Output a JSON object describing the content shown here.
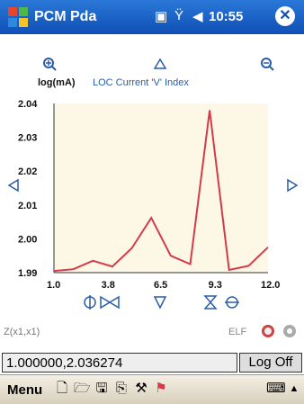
{
  "titlebar": {
    "app_title": "PCM Pda",
    "time": "10:55",
    "close_label": "✕"
  },
  "chart_data": {
    "type": "line",
    "title": "LOC Current 'V' Index",
    "ylabel": "log(mA)",
    "xlim": [
      1.0,
      12.0
    ],
    "ylim": [
      1.99,
      2.04
    ],
    "xticks": [
      "1.0",
      "3.8",
      "6.5",
      "9.3",
      "12.0"
    ],
    "yticks": [
      "2.04",
      "2.03",
      "2.02",
      "2.01",
      "2.00",
      "1.99"
    ],
    "series": [
      {
        "color": "#d43b4a",
        "x": [
          1.0,
          2.0,
          3.0,
          4.0,
          5.0,
          6.0,
          7.0,
          8.0,
          9.0,
          10.0,
          11.0,
          12.0
        ],
        "y": [
          1.9905,
          1.991,
          1.9935,
          1.9918,
          1.9972,
          2.0062,
          1.995,
          1.9925,
          2.038,
          1.9908,
          1.992,
          1.9975
        ]
      }
    ],
    "grid": false,
    "plot_background": "#fdf8e6"
  },
  "status": {
    "formula": "Z(x1,x1)",
    "elf_label": "ELF",
    "coordinates": "1.000000,2.036274",
    "logoff_label": "Log Off"
  },
  "menubar": {
    "menu_label": "Menu"
  },
  "colors": {
    "accent_blue": "#2a5caa",
    "title_bar": "#1c64c8",
    "line": "#d43b4a",
    "plot_bg": "#fdf8e6"
  }
}
